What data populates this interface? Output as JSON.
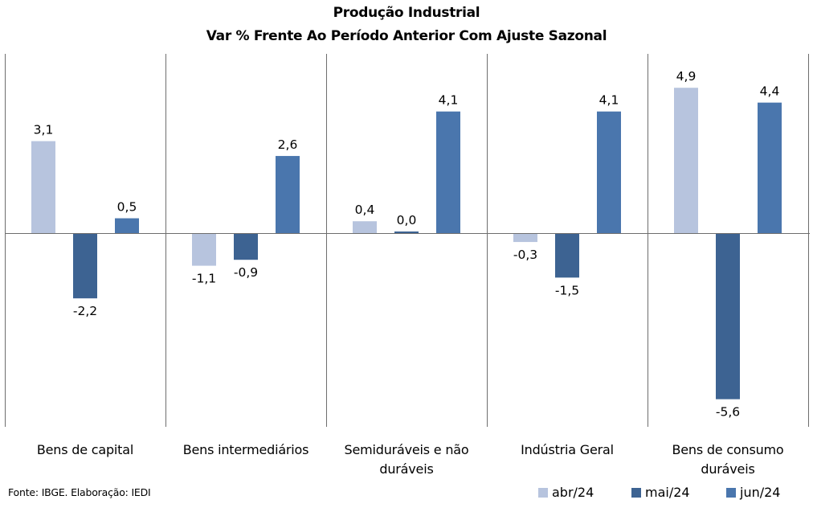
{
  "chart_data": {
    "type": "bar",
    "title": "Produção Industrial",
    "subtitle": "Var % Frente Ao Período Anterior Com Ajuste Sazonal",
    "categories": [
      "Bens de capital",
      "Bens intermediários",
      "Semiduráveis e não duráveis",
      "Indústria Geral",
      "Bens de consumo duráveis"
    ],
    "series": [
      {
        "name": "abr/24",
        "color": "#b7c4de",
        "values": [
          3.1,
          -1.1,
          0.4,
          -0.3,
          4.9
        ],
        "labels": [
          "3,1",
          "-1,1",
          "0,4",
          "-0,3",
          "4,9"
        ]
      },
      {
        "name": "mai/24",
        "color": "#3d6392",
        "values": [
          -2.2,
          -0.9,
          0.0,
          -1.5,
          -5.6
        ],
        "labels": [
          "-2,2",
          "-0,9",
          "0,0",
          "-1,5",
          "-5,6"
        ]
      },
      {
        "name": "jun/24",
        "color": "#4a76ad",
        "values": [
          0.5,
          2.6,
          4.1,
          4.1,
          4.4
        ],
        "labels": [
          "0,5",
          "2,6",
          "4,1",
          "4,1",
          "4,4"
        ]
      }
    ],
    "ylim": [
      -6.1,
      6.1
    ],
    "legend_position": "bottom-right",
    "grid": false,
    "xlabel": "",
    "ylabel": ""
  },
  "source": "Fonte: IBGE. Elaboração: IEDI"
}
